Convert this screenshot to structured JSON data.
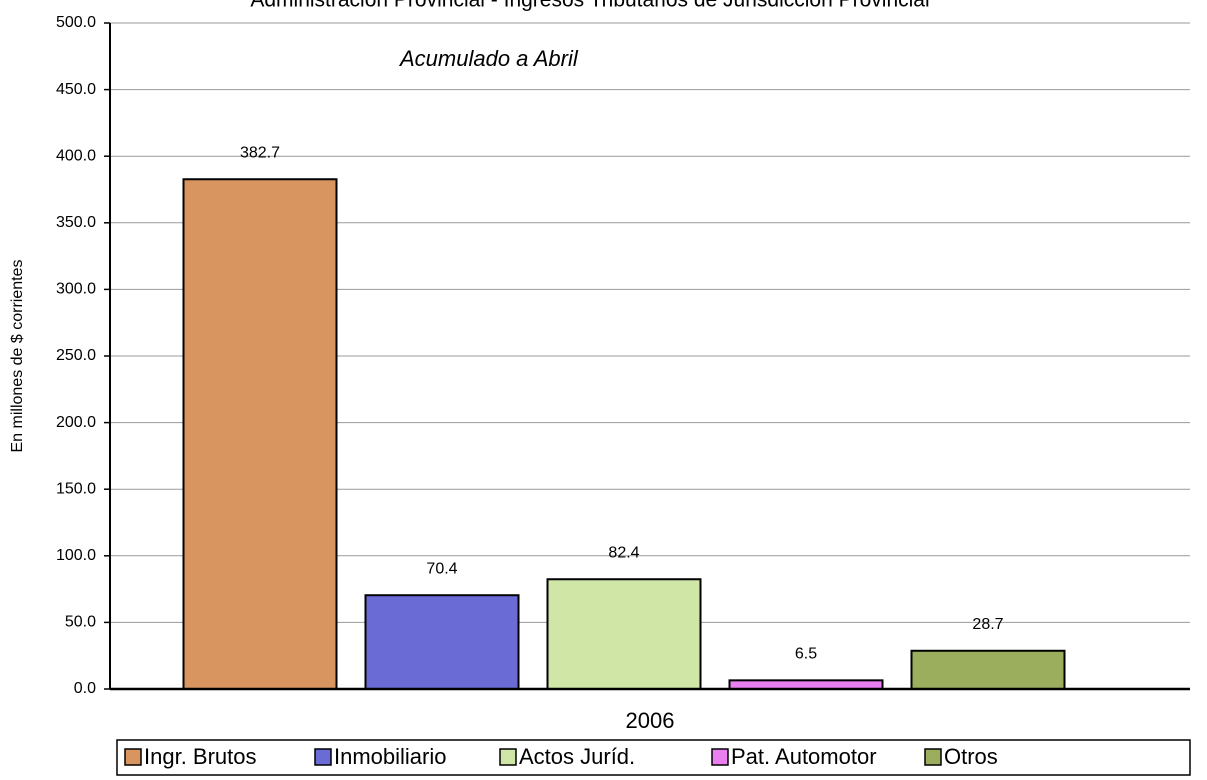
{
  "chart_data": {
    "type": "bar",
    "title": "Administración Provincial - Ingresos Tributarios de Jurisdicción Provincial",
    "annotation": "Acumulado a Abril",
    "ylabel": "En millones de $ corrientes",
    "categories": [
      "2006"
    ],
    "series": [
      {
        "name": "Ingr. Brutos",
        "color": "#d99560",
        "values": [
          382.7
        ]
      },
      {
        "name": "Inmobiliario",
        "color": "#6b6bd6",
        "values": [
          70.4
        ]
      },
      {
        "name": "Actos Juríd.",
        "color": "#cfe6a6",
        "values": [
          82.4
        ]
      },
      {
        "name": "Pat. Automotor",
        "color": "#ea80f0",
        "values": [
          6.5
        ]
      },
      {
        "name": "Otros",
        "color": "#9aae5e",
        "values": [
          28.7
        ]
      }
    ],
    "ylim": [
      0,
      500
    ],
    "yticks": [
      {
        "value": 0,
        "label": "0.0"
      },
      {
        "value": 50,
        "label": "50.0"
      },
      {
        "value": 100,
        "label": "100.0"
      },
      {
        "value": 150,
        "label": "150.0"
      },
      {
        "value": 200,
        "label": "200.0"
      },
      {
        "value": 250,
        "label": "250.0"
      },
      {
        "value": 300,
        "label": "300.0"
      },
      {
        "value": 350,
        "label": "350.0"
      },
      {
        "value": 400,
        "label": "400.0"
      },
      {
        "value": 450,
        "label": "450.0"
      },
      {
        "value": 500,
        "label": "500.0"
      }
    ],
    "grid": true,
    "legend": "bottom"
  }
}
